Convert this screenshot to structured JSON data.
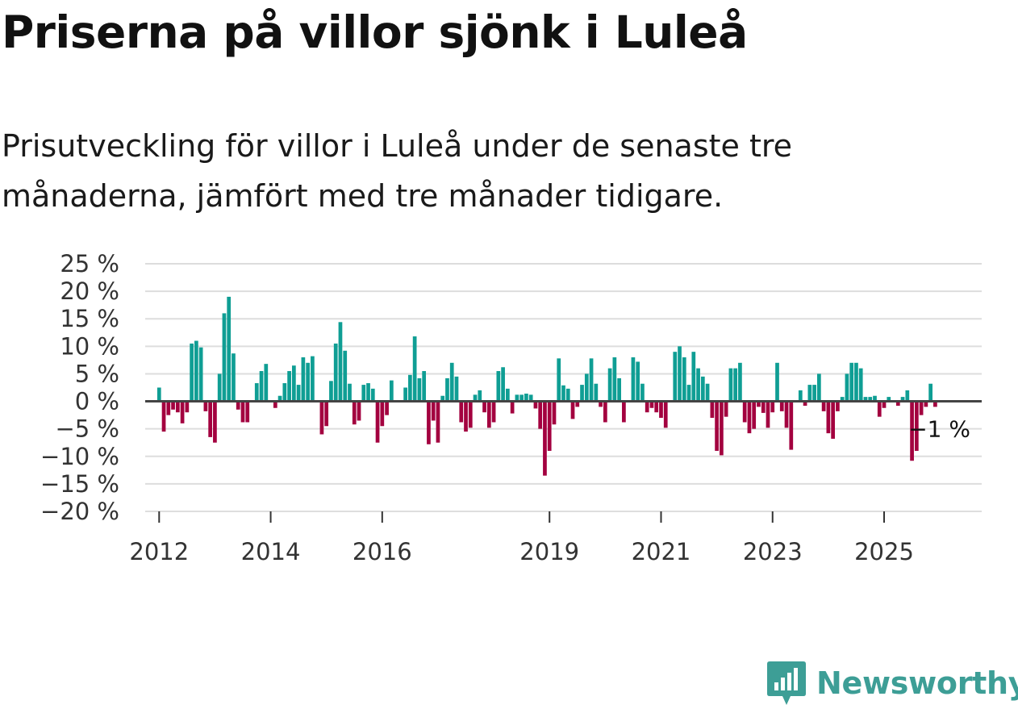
{
  "title": "Priserna på villor sjönk i Luleå",
  "subtitle": "Prisutveckling för villor i Luleå under de senaste tre månaderna, jämfört med tre månader tidigare.",
  "brand": {
    "name": "Newsworthy",
    "icon": "bar-chart-logo-icon",
    "color": "#3d9e96"
  },
  "colors": {
    "positive": "#0f9e94",
    "negative": "#a3003f",
    "zero_line": "#444444",
    "grid": "#dddddd"
  },
  "chart_data": {
    "type": "bar",
    "title": "Priserna på villor sjönk i Luleå",
    "ylabel": "",
    "xlabel": "",
    "ylim": [
      -20,
      25
    ],
    "y_ticks": [
      25,
      20,
      15,
      10,
      5,
      0,
      -5,
      -10,
      -15,
      -20
    ],
    "y_tick_labels": [
      "25 %",
      "20 %",
      "15 %",
      "10 %",
      "5 %",
      "0 %",
      "−5 %",
      "−10 %",
      "−15 %",
      "−20 %"
    ],
    "x_start_year": 2011.75,
    "x_end_year": 2026.75,
    "x_ticks": [
      2012,
      2014,
      2016,
      2019,
      2021,
      2023,
      2025
    ],
    "x_tick_labels": [
      "2012",
      "2014",
      "2016",
      "2019",
      "2021",
      "2023",
      "2025"
    ],
    "end_label": "−1 %",
    "first_month": "2012-01",
    "values": [
      2.5,
      -5.5,
      -2.5,
      -1.5,
      -2,
      -4,
      -2,
      10.5,
      11,
      9.8,
      -1.8,
      -6.5,
      -7.5,
      5,
      16,
      19,
      8.7,
      -1.5,
      -3.8,
      -3.8,
      0,
      3.3,
      5.5,
      6.8,
      0,
      -1.2,
      1,
      3.3,
      5.5,
      6.5,
      3,
      8,
      7,
      8.2,
      0,
      -6,
      -4.5,
      3.7,
      10.5,
      14.4,
      9.2,
      3.2,
      -4.2,
      -3.5,
      3,
      3.3,
      2.3,
      -7.5,
      -4.5,
      -2.5,
      3.8,
      0,
      0,
      2.5,
      4.8,
      11.8,
      4.2,
      5.5,
      -7.8,
      -3.5,
      -7.5,
      1,
      4.2,
      7,
      4.5,
      -3.8,
      -5.5,
      -4.8,
      1.2,
      2,
      -2,
      -4.8,
      -3.8,
      5.5,
      6.2,
      2.3,
      -2.2,
      1.2,
      1.2,
      1.4,
      1.2,
      -1.3,
      -5,
      -13.5,
      -9,
      -4.2,
      7.8,
      2.9,
      2.3,
      -3.2,
      -1,
      3,
      5,
      7.8,
      3.2,
      -1,
      -3.8,
      6,
      8,
      4.2,
      -3.8,
      0,
      8,
      7.2,
      3.2,
      -2,
      -1.2,
      -2,
      -3,
      -4.8,
      0,
      9,
      10,
      8,
      3,
      9,
      6,
      4.5,
      3.2,
      -3,
      -9,
      -9.8,
      -2.8,
      6,
      6,
      7,
      -3.8,
      -5.8,
      -5,
      -1,
      -2.1,
      -4.8,
      -2,
      7,
      -1.8,
      -4.8,
      -8.8,
      0,
      2,
      -0.8,
      3,
      3,
      5,
      -1.8,
      -5.8,
      -6.8,
      -1.8,
      0.8,
      5,
      7,
      7,
      6,
      0.8,
      0.8,
      1,
      -2.8,
      -1.2,
      0.8,
      0,
      -0.8,
      0.8,
      2,
      -10.8,
      -9,
      -2.5,
      -1,
      3.2,
      -1
    ]
  }
}
